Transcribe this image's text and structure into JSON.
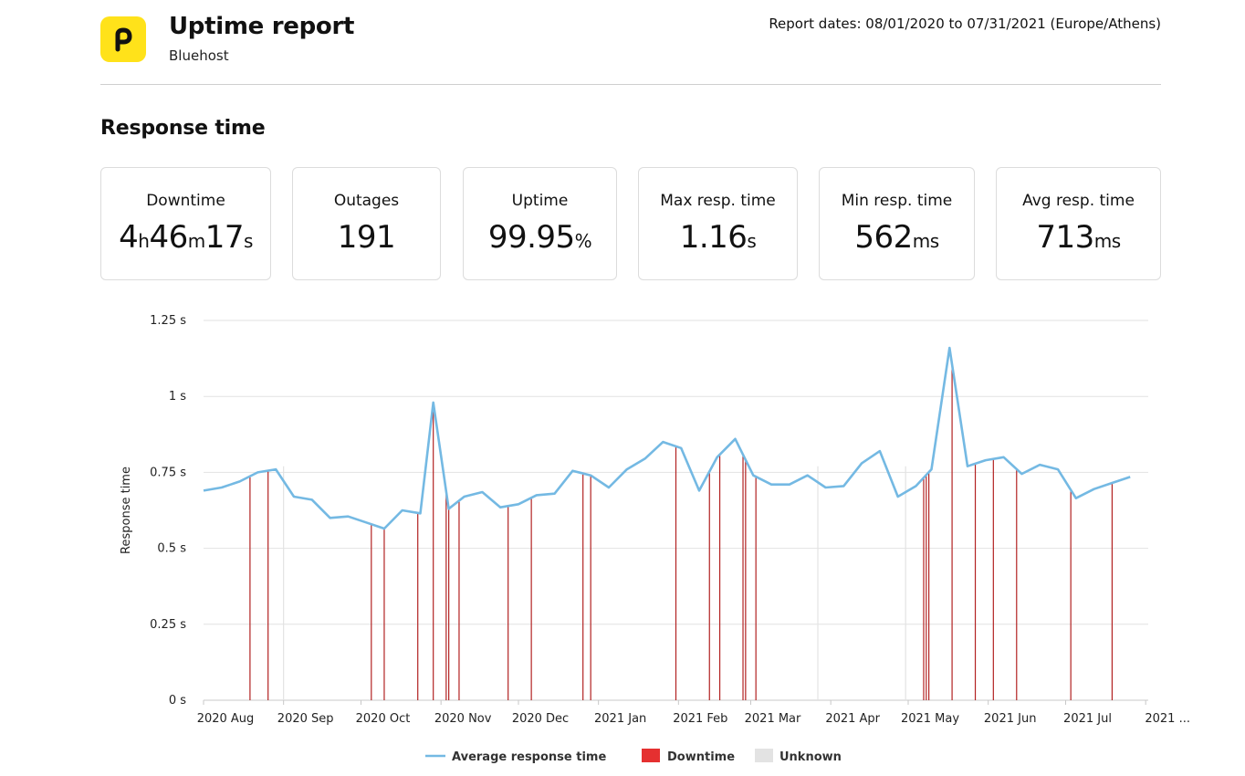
{
  "header": {
    "title": "Uptime report",
    "subtitle": "Bluehost",
    "dates_label": "Report dates:",
    "dates_value": "08/01/2020 to 07/31/2021 (Europe/Athens)"
  },
  "section_title": "Response time",
  "stats": {
    "downtime": {
      "label": "Downtime",
      "h": "4",
      "h_unit": "h",
      "m": "46",
      "m_unit": "m",
      "s": "17",
      "s_unit": "s"
    },
    "outages": {
      "label": "Outages",
      "value": "191"
    },
    "uptime": {
      "label": "Uptime",
      "value": "99.95",
      "unit": "%"
    },
    "max_resp": {
      "label": "Max resp. time",
      "value": "1.16",
      "unit": "s"
    },
    "min_resp": {
      "label": "Min resp. time",
      "value": "562",
      "unit": "ms"
    },
    "avg_resp": {
      "label": "Avg resp. time",
      "value": "713",
      "unit": "ms"
    }
  },
  "colors": {
    "line": "#74b9e3",
    "downtime": "#b22222",
    "downtime_legend": "#e53030",
    "unknown": "#e3e3e3",
    "grid": "#e2e2e2",
    "logo": "#ffe21a"
  },
  "chart_data": {
    "type": "line",
    "ylabel": "Response time",
    "ylim": [
      0,
      1.25
    ],
    "y_ticks": [
      {
        "value": 0,
        "label": "0 s"
      },
      {
        "value": 0.25,
        "label": "0.25 s"
      },
      {
        "value": 0.5,
        "label": "0.5 s"
      },
      {
        "value": 0.75,
        "label": "0.75 s"
      },
      {
        "value": 1,
        "label": "1 s"
      },
      {
        "value": 1.25,
        "label": "1.25 s"
      }
    ],
    "x_range": [
      "2020-08-01",
      "2021-08-02"
    ],
    "x_ticks": [
      {
        "date": "2020-08-01",
        "label": "2020 Aug"
      },
      {
        "date": "2020-09-01",
        "label": "2020 Sep"
      },
      {
        "date": "2020-10-01",
        "label": "2020 Oct"
      },
      {
        "date": "2020-11-01",
        "label": "2020 Nov"
      },
      {
        "date": "2020-12-01",
        "label": "2020 Dec"
      },
      {
        "date": "2021-01-01",
        "label": "2021 Jan"
      },
      {
        "date": "2021-02-01",
        "label": "2021 Feb"
      },
      {
        "date": "2021-03-01",
        "label": "2021 Mar"
      },
      {
        "date": "2021-04-01",
        "label": "2021 Apr"
      },
      {
        "date": "2021-05-01",
        "label": "2021 May"
      },
      {
        "date": "2021-06-01",
        "label": "2021 Jun"
      },
      {
        "date": "2021-07-01",
        "label": "2021 Jul"
      },
      {
        "date": "2021-08-01",
        "label": "2021 ..."
      }
    ],
    "series": [
      {
        "name": "Average response time",
        "points": [
          [
            "2020-08-01",
            0.69
          ],
          [
            "2020-08-08",
            0.7
          ],
          [
            "2020-08-15",
            0.72
          ],
          [
            "2020-08-22",
            0.75
          ],
          [
            "2020-08-29",
            0.76
          ],
          [
            "2020-09-05",
            0.67
          ],
          [
            "2020-09-12",
            0.66
          ],
          [
            "2020-09-19",
            0.6
          ],
          [
            "2020-09-26",
            0.605
          ],
          [
            "2020-10-03",
            0.585
          ],
          [
            "2020-10-10",
            0.565
          ],
          [
            "2020-10-17",
            0.625
          ],
          [
            "2020-10-24",
            0.615
          ],
          [
            "2020-10-29",
            0.98
          ],
          [
            "2020-11-04",
            0.63
          ],
          [
            "2020-11-10",
            0.67
          ],
          [
            "2020-11-17",
            0.685
          ],
          [
            "2020-11-24",
            0.635
          ],
          [
            "2020-12-01",
            0.645
          ],
          [
            "2020-12-08",
            0.675
          ],
          [
            "2020-12-15",
            0.68
          ],
          [
            "2020-12-22",
            0.755
          ],
          [
            "2020-12-29",
            0.74
          ],
          [
            "2021-01-05",
            0.7
          ],
          [
            "2021-01-12",
            0.76
          ],
          [
            "2021-01-19",
            0.795
          ],
          [
            "2021-01-26",
            0.85
          ],
          [
            "2021-02-02",
            0.83
          ],
          [
            "2021-02-09",
            0.69
          ],
          [
            "2021-02-16",
            0.8
          ],
          [
            "2021-02-23",
            0.86
          ],
          [
            "2021-03-02",
            0.74
          ],
          [
            "2021-03-09",
            0.71
          ],
          [
            "2021-03-16",
            0.71
          ],
          [
            "2021-03-23",
            0.74
          ],
          [
            "2021-03-30",
            0.7
          ],
          [
            "2021-04-06",
            0.705
          ],
          [
            "2021-04-13",
            0.78
          ],
          [
            "2021-04-20",
            0.82
          ],
          [
            "2021-04-27",
            0.67
          ],
          [
            "2021-05-04",
            0.705
          ],
          [
            "2021-05-10",
            0.76
          ],
          [
            "2021-05-17",
            1.16
          ],
          [
            "2021-05-24",
            0.77
          ],
          [
            "2021-05-31",
            0.79
          ],
          [
            "2021-06-07",
            0.8
          ],
          [
            "2021-06-14",
            0.745
          ],
          [
            "2021-06-21",
            0.775
          ],
          [
            "2021-06-28",
            0.76
          ],
          [
            "2021-07-05",
            0.665
          ],
          [
            "2021-07-12",
            0.695
          ],
          [
            "2021-07-19",
            0.715
          ],
          [
            "2021-07-26",
            0.735
          ]
        ]
      }
    ],
    "downtime_events": [
      "2020-08-19",
      "2020-08-26",
      "2020-10-05",
      "2020-10-10",
      "2020-10-23",
      "2020-10-29",
      "2020-11-03",
      "2020-11-04",
      "2020-11-08",
      "2020-11-27",
      "2020-12-06",
      "2020-12-26",
      "2020-12-29",
      "2021-01-31",
      "2021-02-13",
      "2021-02-17",
      "2021-02-26",
      "2021-02-27",
      "2021-03-03",
      "2021-05-07",
      "2021-05-08",
      "2021-05-09",
      "2021-05-18",
      "2021-05-27",
      "2021-06-03",
      "2021-06-12",
      "2021-07-03",
      "2021-07-19"
    ],
    "unknown_events": [
      "2020-09-01",
      "2021-03-27",
      "2021-04-30"
    ],
    "legend": [
      {
        "name": "Average response time",
        "type": "line"
      },
      {
        "name": "Downtime",
        "type": "box"
      },
      {
        "name": "Unknown",
        "type": "box"
      }
    ]
  }
}
